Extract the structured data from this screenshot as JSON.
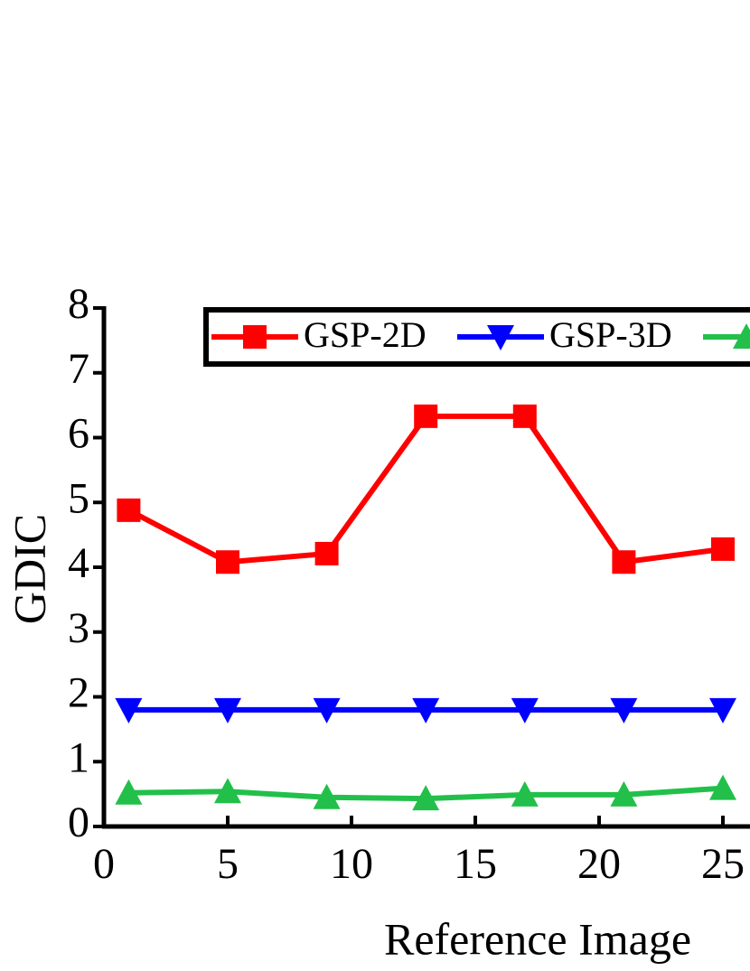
{
  "chart_data": {
    "type": "line",
    "x_label": "Reference Image",
    "y_label": "GDIC",
    "x": [
      1,
      5,
      9,
      13,
      17,
      21,
      25
    ],
    "series": [
      {
        "name": "GSP-2D",
        "color": "#ff0000",
        "marker": "square",
        "values": [
          4.88,
          4.08,
          4.21,
          6.33,
          6.33,
          4.08,
          4.28
        ]
      },
      {
        "name": "GSP-3D",
        "color": "#0000ff",
        "marker": "triangle-down",
        "values": [
          1.8,
          1.8,
          1.8,
          1.8,
          1.8,
          1.8,
          1.8
        ]
      },
      {
        "color": "#22c04a",
        "marker": "triangle-up",
        "values": [
          0.52,
          0.54,
          0.45,
          0.43,
          0.49,
          0.49,
          0.59
        ]
      }
    ],
    "xlim": [
      0,
      30
    ],
    "xticks": [
      0,
      5,
      10,
      15,
      20,
      25
    ],
    "ylim": [
      0,
      8
    ],
    "yticks": [
      0,
      1,
      2,
      3,
      4,
      5,
      6,
      7,
      8
    ],
    "grid": false,
    "legend": "top"
  }
}
